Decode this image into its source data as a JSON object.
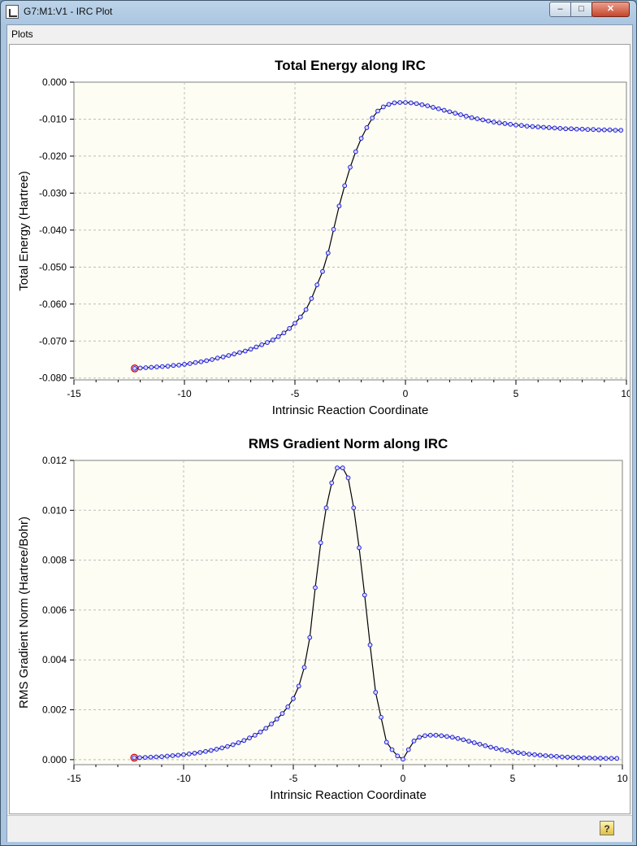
{
  "window": {
    "title": "G7:M1:V1 - IRC Plot"
  },
  "menu": {
    "plots": "Plots"
  },
  "controls": {
    "minimize": "–",
    "maximize": "□",
    "close": "✕",
    "help": "?"
  },
  "colors": {
    "plot_bg": "#fdfdf3",
    "line": "#000000",
    "marker": "#2020e0",
    "highlight": "#e00000"
  },
  "icons": [
    "app-icon",
    "help-icon"
  ],
  "chart_data": [
    {
      "type": "line",
      "title": "Total Energy along IRC",
      "xlabel": "Intrinsic Reaction Coordinate",
      "ylabel": "Total Energy (Hartree)",
      "xlim": [
        -15,
        10
      ],
      "ylim": [
        -0.0805,
        0.0
      ],
      "xticks": [
        "-15",
        "-10",
        "-5",
        "0",
        "5",
        "10"
      ],
      "yticks": [
        "0.000",
        "-0.010",
        "-0.020",
        "-0.030",
        "-0.040",
        "-0.050",
        "-0.060",
        "-0.070",
        "-0.080"
      ],
      "grid": true,
      "highlight_point": [
        -12.25,
        -0.0774
      ],
      "x": [
        -12.25,
        -12.0,
        -11.75,
        -11.5,
        -11.25,
        -11.0,
        -10.75,
        -10.5,
        -10.25,
        -10.0,
        -9.75,
        -9.5,
        -9.25,
        -9.0,
        -8.75,
        -8.5,
        -8.25,
        -8.0,
        -7.75,
        -7.5,
        -7.25,
        -7.0,
        -6.75,
        -6.5,
        -6.25,
        -6.0,
        -5.75,
        -5.5,
        -5.25,
        -5.0,
        -4.75,
        -4.5,
        -4.25,
        -4.0,
        -3.75,
        -3.5,
        -3.25,
        -3.0,
        -2.75,
        -2.5,
        -2.25,
        -2.0,
        -1.75,
        -1.5,
        -1.25,
        -1.0,
        -0.75,
        -0.5,
        -0.25,
        0.0,
        0.25,
        0.5,
        0.75,
        1.0,
        1.25,
        1.5,
        1.75,
        2.0,
        2.25,
        2.5,
        2.75,
        3.0,
        3.25,
        3.5,
        3.75,
        4.0,
        4.25,
        4.5,
        4.75,
        5.0,
        5.25,
        5.5,
        5.75,
        6.0,
        6.25,
        6.5,
        6.75,
        7.0,
        7.25,
        7.5,
        7.75,
        8.0,
        8.25,
        8.5,
        8.75,
        9.0,
        9.25,
        9.5,
        9.75
      ],
      "y": [
        -0.0774,
        -0.0773,
        -0.0772,
        -0.0771,
        -0.077,
        -0.0769,
        -0.0768,
        -0.0766,
        -0.0765,
        -0.0763,
        -0.0761,
        -0.0758,
        -0.0756,
        -0.0753,
        -0.075,
        -0.0746,
        -0.0743,
        -0.0739,
        -0.0735,
        -0.0731,
        -0.0727,
        -0.0722,
        -0.0716,
        -0.071,
        -0.0704,
        -0.0697,
        -0.0688,
        -0.0678,
        -0.0666,
        -0.0652,
        -0.0635,
        -0.0615,
        -0.0585,
        -0.0548,
        -0.0512,
        -0.0462,
        -0.0398,
        -0.0335,
        -0.028,
        -0.023,
        -0.0188,
        -0.0152,
        -0.0123,
        -0.0097,
        -0.0078,
        -0.0067,
        -0.006,
        -0.0056,
        -0.0055,
        -0.0055,
        -0.0056,
        -0.0058,
        -0.0061,
        -0.0064,
        -0.0068,
        -0.0072,
        -0.0076,
        -0.008,
        -0.0084,
        -0.0088,
        -0.0092,
        -0.0096,
        -0.0099,
        -0.0102,
        -0.0105,
        -0.0108,
        -0.011,
        -0.0112,
        -0.0114,
        -0.0116,
        -0.0117,
        -0.0119,
        -0.012,
        -0.0121,
        -0.0122,
        -0.0123,
        -0.0124,
        -0.0125,
        -0.0126,
        -0.0126,
        -0.0127,
        -0.0127,
        -0.0128,
        -0.0128,
        -0.0129,
        -0.0129,
        -0.0129,
        -0.013,
        -0.013
      ]
    },
    {
      "type": "line",
      "title": "RMS Gradient Norm along IRC",
      "xlabel": "Intrinsic Reaction Coordinate",
      "ylabel": "RMS Gradient Norm (Hartree/Bohr)",
      "xlim": [
        -15,
        10
      ],
      "ylim": [
        -0.0002,
        0.012
      ],
      "xticks": [
        "-15",
        "-10",
        "-5",
        "0",
        "5",
        "10"
      ],
      "yticks": [
        "0.012",
        "0.010",
        "0.008",
        "0.006",
        "0.004",
        "0.002",
        "0.000"
      ],
      "grid": true,
      "highlight_point": [
        -12.25,
        8e-05
      ],
      "x": [
        -12.25,
        -12.0,
        -11.75,
        -11.5,
        -11.25,
        -11.0,
        -10.75,
        -10.5,
        -10.25,
        -10.0,
        -9.75,
        -9.5,
        -9.25,
        -9.0,
        -8.75,
        -8.5,
        -8.25,
        -8.0,
        -7.75,
        -7.5,
        -7.25,
        -7.0,
        -6.75,
        -6.5,
        -6.25,
        -6.0,
        -5.75,
        -5.5,
        -5.25,
        -5.0,
        -4.75,
        -4.5,
        -4.25,
        -4.0,
        -3.75,
        -3.5,
        -3.25,
        -3.0,
        -2.75,
        -2.5,
        -2.25,
        -2.0,
        -1.75,
        -1.5,
        -1.25,
        -1.0,
        -0.75,
        -0.5,
        -0.25,
        0.0,
        0.25,
        0.5,
        0.75,
        1.0,
        1.25,
        1.5,
        1.75,
        2.0,
        2.25,
        2.5,
        2.75,
        3.0,
        3.25,
        3.5,
        3.75,
        4.0,
        4.25,
        4.5,
        4.75,
        5.0,
        5.25,
        5.5,
        5.75,
        6.0,
        6.25,
        6.5,
        6.75,
        7.0,
        7.25,
        7.5,
        7.75,
        8.0,
        8.25,
        8.5,
        8.75,
        9.0,
        9.25,
        9.5,
        9.75
      ],
      "y": [
        8e-05,
        8e-05,
        9e-05,
        0.0001,
        0.00011,
        0.00012,
        0.00014,
        0.00016,
        0.00018,
        0.0002,
        0.00023,
        0.00026,
        0.00029,
        0.00033,
        0.00037,
        0.00042,
        0.00047,
        0.00053,
        0.0006,
        0.00068,
        0.00077,
        0.00087,
        0.00098,
        0.00111,
        0.00126,
        0.00143,
        0.00163,
        0.00185,
        0.00212,
        0.00245,
        0.00295,
        0.0037,
        0.0049,
        0.0069,
        0.0087,
        0.0101,
        0.0111,
        0.0117,
        0.0117,
        0.0113,
        0.0101,
        0.0085,
        0.0066,
        0.0046,
        0.0027,
        0.0017,
        0.0007,
        0.0004,
        0.00015,
        2e-05,
        0.0004,
        0.00075,
        0.0009,
        0.00096,
        0.00098,
        0.00098,
        0.00096,
        0.00093,
        0.0009,
        0.00085,
        0.0008,
        0.00074,
        0.00068,
        0.00062,
        0.00056,
        0.0005,
        0.00045,
        0.0004,
        0.00036,
        0.00032,
        0.00028,
        0.00025,
        0.00022,
        0.0002,
        0.00018,
        0.00016,
        0.00014,
        0.00013,
        0.00011,
        0.0001,
        9e-05,
        8e-05,
        7e-05,
        7e-05,
        6e-05,
        6e-05,
        5e-05,
        5e-05,
        5e-05
      ]
    }
  ]
}
